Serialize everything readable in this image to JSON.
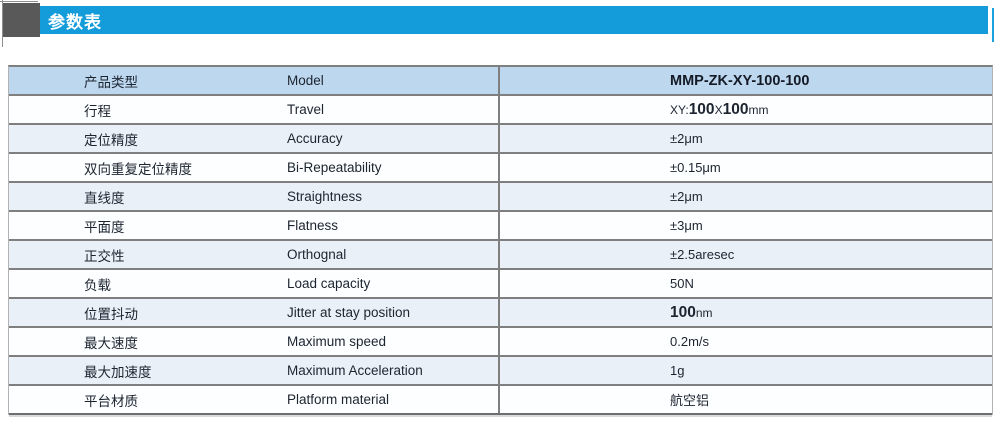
{
  "header": {
    "title": "参数表",
    "bar_color": "#149cda",
    "block_color": "#595959",
    "text_color": "#ffffff"
  },
  "colors": {
    "row_highlight": "#bdd7ee",
    "row_alt": "#e9f0f8",
    "row_white": "#fdfeff",
    "border": "#7f7f7f",
    "text": "#1c2430"
  },
  "table": {
    "rows": [
      {
        "cn": "产品类型",
        "en": "Model",
        "value": "MMP-ZK-XY-100-100",
        "bold": true,
        "highlight": true
      },
      {
        "cn": "行程",
        "en": "Travel",
        "value_parts": [
          {
            "text": "XY:",
            "size": "sm"
          },
          {
            "text": "100",
            "size": "lg"
          },
          {
            "text": "X",
            "size": "sm"
          },
          {
            "text": "100",
            "size": "lg"
          },
          {
            "text": "mm",
            "size": "sm"
          }
        ],
        "value": "XY:100X100mm"
      },
      {
        "cn": "定位精度",
        "en": "Accuracy",
        "value": "±2μm"
      },
      {
        "cn": "双向重复定位精度",
        "en": "Bi-Repeatability",
        "value": "±0.15μm"
      },
      {
        "cn": "直线度",
        "en": "Straightness",
        "value": "±2μm"
      },
      {
        "cn": "平面度",
        "en": "Flatness",
        "value": "±3μm"
      },
      {
        "cn": "正交性",
        "en": "Orthognal",
        "value": "±2.5aresec"
      },
      {
        "cn": "负载",
        "en": "Load capacity",
        "value": "50N"
      },
      {
        "cn": "位置抖动",
        "en": "Jitter at stay position",
        "value_parts": [
          {
            "text": "100",
            "size": "lg"
          },
          {
            "text": "nm",
            "size": "sm"
          }
        ],
        "value": "100nm"
      },
      {
        "cn": "最大速度",
        "en": "Maximum speed",
        "value": "0.2m/s"
      },
      {
        "cn": "最大加速度",
        "en": "Maximum Acceleration",
        "value": "1g"
      },
      {
        "cn": "平台材质",
        "en": "Platform material",
        "value": "航空铝"
      }
    ]
  }
}
